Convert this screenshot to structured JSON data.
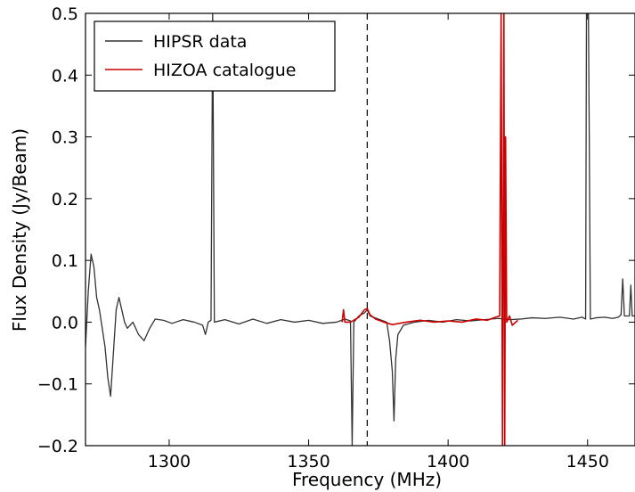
{
  "chart_data": {
    "type": "line",
    "title": "",
    "xlabel": "Frequency (MHz)",
    "ylabel": "Flux Density (Jy/Beam)",
    "xlim": [
      1270,
      1467
    ],
    "ylim": [
      -0.2,
      0.5
    ],
    "xticks": [
      1300,
      1350,
      1400,
      1450
    ],
    "xtick_labels": [
      "1300",
      "1350",
      "1400",
      "1450"
    ],
    "yticks": [
      -0.2,
      -0.1,
      0.0,
      0.1,
      0.2,
      0.3,
      0.4,
      0.5
    ],
    "ytick_labels": [
      "−0.2",
      "−0.1",
      "0.0",
      "0.1",
      "0.2",
      "0.3",
      "0.4",
      "0.5"
    ],
    "grid": false,
    "legend_position": "top-left",
    "annotations": {
      "vertical_dashed_line_x": 1371
    },
    "series": [
      {
        "name": "HIPSR data",
        "color": "#333333",
        "points": [
          [
            1270,
            -0.04
          ],
          [
            1271,
            0.05
          ],
          [
            1272,
            0.11
          ],
          [
            1273,
            0.09
          ],
          [
            1274,
            0.04
          ],
          [
            1275,
            0.02
          ],
          [
            1276,
            -0.01
          ],
          [
            1277,
            -0.04
          ],
          [
            1278,
            -0.09
          ],
          [
            1279,
            -0.12
          ],
          [
            1280,
            -0.05
          ],
          [
            1281,
            0.02
          ],
          [
            1282,
            0.04
          ],
          [
            1283,
            0.02
          ],
          [
            1284,
            0.0
          ],
          [
            1285,
            -0.01
          ],
          [
            1287,
            0.0
          ],
          [
            1289,
            -0.02
          ],
          [
            1291,
            -0.03
          ],
          [
            1293,
            -0.01
          ],
          [
            1295,
            0.005
          ],
          [
            1298,
            0.003
          ],
          [
            1301,
            -0.002
          ],
          [
            1305,
            0.004
          ],
          [
            1309,
            0.0
          ],
          [
            1312,
            -0.005
          ],
          [
            1313,
            -0.02
          ],
          [
            1314,
            0.0
          ],
          [
            1315,
            0.003
          ],
          [
            1315.6,
            0.5
          ],
          [
            1316.2,
            0.0
          ],
          [
            1320,
            0.004
          ],
          [
            1325,
            -0.003
          ],
          [
            1330,
            0.005
          ],
          [
            1335,
            -0.002
          ],
          [
            1340,
            0.004
          ],
          [
            1345,
            0.0
          ],
          [
            1350,
            0.003
          ],
          [
            1355,
            -0.002
          ],
          [
            1360,
            0.0
          ],
          [
            1363,
            0.005
          ],
          [
            1365,
            0.002
          ],
          [
            1365.6,
            -0.2
          ],
          [
            1366.2,
            0.0
          ],
          [
            1368,
            0.01
          ],
          [
            1370,
            0.015
          ],
          [
            1371,
            0.02
          ],
          [
            1372,
            0.01
          ],
          [
            1375,
            0.005
          ],
          [
            1378,
            0.0
          ],
          [
            1379,
            -0.03
          ],
          [
            1380,
            -0.08
          ],
          [
            1380.6,
            -0.16
          ],
          [
            1381.2,
            -0.06
          ],
          [
            1382,
            -0.02
          ],
          [
            1384,
            -0.005
          ],
          [
            1388,
            0.0
          ],
          [
            1393,
            0.003
          ],
          [
            1398,
            0.0
          ],
          [
            1403,
            0.004
          ],
          [
            1408,
            0.002
          ],
          [
            1413,
            0.004
          ],
          [
            1418,
            0.006
          ],
          [
            1422,
            0.004
          ],
          [
            1426,
            0.005
          ],
          [
            1430,
            0.007
          ],
          [
            1435,
            0.006
          ],
          [
            1440,
            0.008
          ],
          [
            1445,
            0.005
          ],
          [
            1448,
            0.008
          ],
          [
            1449.3,
            0.005
          ],
          [
            1449.6,
            0.5
          ],
          [
            1450.3,
            0.5
          ],
          [
            1450.6,
            0.3
          ],
          [
            1451,
            0.005
          ],
          [
            1453,
            0.007
          ],
          [
            1456,
            0.008
          ],
          [
            1459,
            0.006
          ],
          [
            1461,
            0.008
          ],
          [
            1462,
            0.012
          ],
          [
            1462.6,
            0.07
          ],
          [
            1463.2,
            0.01
          ],
          [
            1465,
            0.01
          ],
          [
            1465.5,
            0.06
          ],
          [
            1466,
            0.01
          ],
          [
            1467,
            0.01
          ]
        ]
      },
      {
        "name": "HIZOA catalogue",
        "color": "#cc0000",
        "points": [
          [
            1362,
            0.0
          ],
          [
            1362.5,
            0.02
          ],
          [
            1363,
            0.0
          ],
          [
            1365,
            0.0
          ],
          [
            1368,
            0.008
          ],
          [
            1370,
            0.02
          ],
          [
            1371,
            0.022
          ],
          [
            1372,
            0.012
          ],
          [
            1374,
            0.005
          ],
          [
            1377,
            0.0
          ],
          [
            1380,
            -0.004
          ],
          [
            1385,
            0.0
          ],
          [
            1390,
            0.003
          ],
          [
            1395,
            0.0
          ],
          [
            1400,
            0.002
          ],
          [
            1405,
            0.0
          ],
          [
            1410,
            0.005
          ],
          [
            1414,
            0.003
          ],
          [
            1417,
            0.008
          ],
          [
            1418.5,
            0.01
          ],
          [
            1419,
            0.5
          ],
          [
            1419.5,
            -0.2
          ],
          [
            1420,
            0.5
          ],
          [
            1420.3,
            -0.2
          ],
          [
            1420.6,
            0.3
          ],
          [
            1421,
            0.0
          ],
          [
            1422,
            0.01
          ],
          [
            1423,
            -0.005
          ],
          [
            1425,
            0.003
          ]
        ]
      }
    ]
  }
}
